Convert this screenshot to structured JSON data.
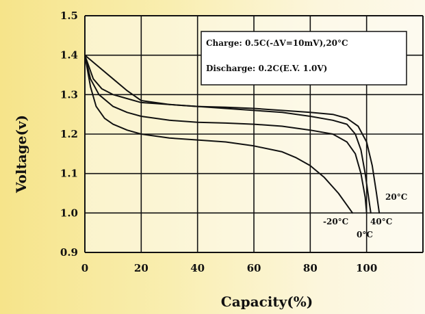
{
  "chart_data": {
    "type": "line",
    "xlabel": "Capacity(%)",
    "ylabel": "Voltage(v)",
    "xlim": [
      0,
      120
    ],
    "ylim": [
      0.9,
      1.5
    ],
    "x_ticks": [
      "0",
      "20",
      "40",
      "60",
      "80",
      "100"
    ],
    "x_tick_values": [
      0,
      20,
      40,
      60,
      80,
      100
    ],
    "y_ticks": [
      "0.9",
      "1.0",
      "1.1",
      "1.2",
      "1.3",
      "1.4",
      "1.5"
    ],
    "y_tick_values": [
      0.9,
      1.0,
      1.1,
      1.2,
      1.3,
      1.4,
      1.5
    ],
    "grid": true,
    "annotation_box": {
      "lines": [
        "Charge: 0.5C(-ΔV=10mV),20°C",
        "Discharge: 0.2C(E.V. 1.0V)"
      ],
      "placement": "top-right"
    },
    "series": [
      {
        "name": "20°C",
        "x": [
          0,
          5,
          10,
          15,
          20,
          30,
          40,
          50,
          60,
          70,
          80,
          88,
          93,
          97,
          100,
          102,
          103.5,
          104.5
        ],
        "y": [
          1.4,
          1.37,
          1.34,
          1.31,
          1.285,
          1.275,
          1.27,
          1.268,
          1.265,
          1.26,
          1.255,
          1.25,
          1.24,
          1.22,
          1.18,
          1.12,
          1.05,
          1.0
        ]
      },
      {
        "name": "40°C",
        "x": [
          0,
          3,
          6,
          10,
          15,
          20,
          30,
          40,
          50,
          60,
          70,
          80,
          88,
          93,
          96,
          98,
          99.5,
          100.5,
          101.5
        ],
        "y": [
          1.4,
          1.34,
          1.315,
          1.3,
          1.29,
          1.28,
          1.275,
          1.27,
          1.265,
          1.26,
          1.255,
          1.245,
          1.235,
          1.225,
          1.2,
          1.16,
          1.1,
          1.05,
          1.0
        ]
      },
      {
        "name": "0°C",
        "x": [
          0,
          2,
          5,
          10,
          15,
          20,
          30,
          40,
          50,
          60,
          70,
          80,
          88,
          93,
          96,
          98,
          99.5,
          100
        ],
        "y": [
          1.4,
          1.34,
          1.3,
          1.27,
          1.255,
          1.245,
          1.235,
          1.23,
          1.228,
          1.225,
          1.22,
          1.21,
          1.2,
          1.18,
          1.15,
          1.1,
          1.04,
          1.0
        ]
      },
      {
        "name": "-20°C",
        "x": [
          0,
          2,
          4,
          7,
          10,
          15,
          20,
          30,
          40,
          50,
          60,
          70,
          75,
          80,
          85,
          90,
          93,
          95
        ],
        "y": [
          1.4,
          1.32,
          1.27,
          1.24,
          1.225,
          1.21,
          1.2,
          1.19,
          1.185,
          1.18,
          1.17,
          1.155,
          1.14,
          1.12,
          1.09,
          1.05,
          1.02,
          1.0
        ]
      }
    ],
    "curve_labels": [
      {
        "text": "20°C"
      },
      {
        "text": "-20°C"
      },
      {
        "text": "40°C"
      },
      {
        "text": "0°C"
      }
    ]
  }
}
